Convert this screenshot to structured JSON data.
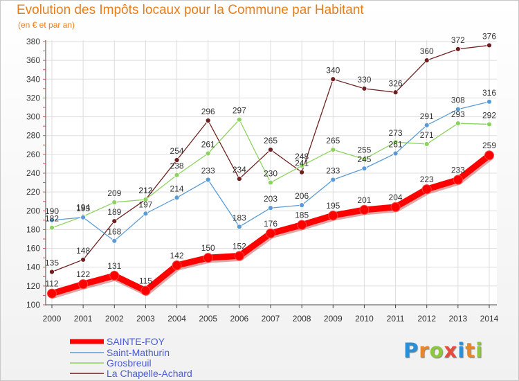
{
  "title": "Evolution des Impôts locaux pour la Commune par Habitant",
  "subtitle": "(en € et par an)",
  "logo": {
    "letters": [
      "P",
      "r",
      "o",
      "x",
      "i",
      "t",
      "i"
    ],
    "colors": [
      "#2a8fd6",
      "#e8862a",
      "#8dc63f",
      "#e84a3c",
      "#2a8fd6",
      "#e8862a",
      "#8dc63f"
    ]
  },
  "chart_data": {
    "type": "line",
    "x": [
      2000,
      2001,
      2002,
      2003,
      2004,
      2005,
      2006,
      2007,
      2008,
      2009,
      2010,
      2011,
      2012,
      2013,
      2014
    ],
    "ylim": [
      100,
      380
    ],
    "yticks": [
      100,
      120,
      140,
      160,
      180,
      200,
      220,
      240,
      260,
      280,
      300,
      320,
      340,
      360,
      380
    ],
    "grid": true,
    "legend_position": "bottom-left",
    "series": [
      {
        "name": "La Chapelle-Achard",
        "color": "#6e1f1f",
        "values": [
          135,
          148,
          189,
          212,
          254,
          296,
          234,
          265,
          241,
          340,
          330,
          326,
          360,
          372,
          376
        ]
      },
      {
        "name": "Grosbreuil",
        "color": "#8dd35f",
        "values": [
          182,
          194,
          209,
          212,
          238,
          261,
          297,
          230,
          248,
          265,
          255,
          273,
          271,
          293,
          292
        ]
      },
      {
        "name": "Saint-Mathurin",
        "color": "#5b9bd5",
        "values": [
          190,
          193,
          168,
          197,
          214,
          233,
          183,
          203,
          206,
          233,
          245,
          261,
          291,
          308,
          316
        ]
      },
      {
        "name": "SAINTE-FOY",
        "color": "#ff0000",
        "emphasis": true,
        "values": [
          112,
          122,
          131,
          115,
          142,
          150,
          152,
          176,
          185,
          195,
          201,
          204,
          223,
          233,
          259
        ]
      }
    ],
    "legend": [
      "SAINTE-FOY",
      "Saint-Mathurin",
      "Grosbreuil",
      "La Chapelle-Achard"
    ]
  }
}
